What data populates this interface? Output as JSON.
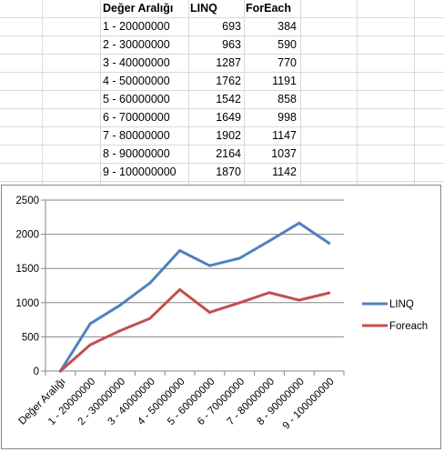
{
  "table": {
    "headers": [
      "Değer Aralığı",
      "LINQ",
      "ForEach"
    ],
    "rows": [
      [
        "1 - 20000000",
        "693",
        "384"
      ],
      [
        "2 - 30000000",
        "963",
        "590"
      ],
      [
        "3 - 40000000",
        "1287",
        "770"
      ],
      [
        "4 - 50000000",
        "1762",
        "1191"
      ],
      [
        "5 - 60000000",
        "1542",
        "858"
      ],
      [
        "6 - 70000000",
        "1649",
        "998"
      ],
      [
        "7 - 80000000",
        "1902",
        "1147"
      ],
      [
        "8 - 90000000",
        "2164",
        "1037"
      ],
      [
        "9 - 100000000",
        "1870",
        "1142"
      ]
    ]
  },
  "chart_data": {
    "type": "line",
    "categories": [
      "Değer Aralığı",
      "1 - 20000000",
      "2 - 30000000",
      "3 - 40000000",
      "4 - 50000000",
      "5 - 60000000",
      "6 - 70000000",
      "7 - 80000000",
      "8 - 90000000",
      "9 - 100000000"
    ],
    "series": [
      {
        "name": "LINQ",
        "color": "#4f81bd",
        "values": [
          0,
          693,
          963,
          1287,
          1762,
          1542,
          1649,
          1902,
          2164,
          1870
        ]
      },
      {
        "name": "Foreach",
        "color": "#c0504d",
        "values": [
          0,
          384,
          590,
          770,
          1191,
          858,
          998,
          1147,
          1037,
          1142
        ]
      }
    ],
    "yticks": [
      0,
      500,
      1000,
      1500,
      2000,
      2500
    ],
    "ylim": [
      0,
      2500
    ],
    "grid": true,
    "legend": "right",
    "title": "",
    "xlabel": "",
    "ylabel": ""
  }
}
